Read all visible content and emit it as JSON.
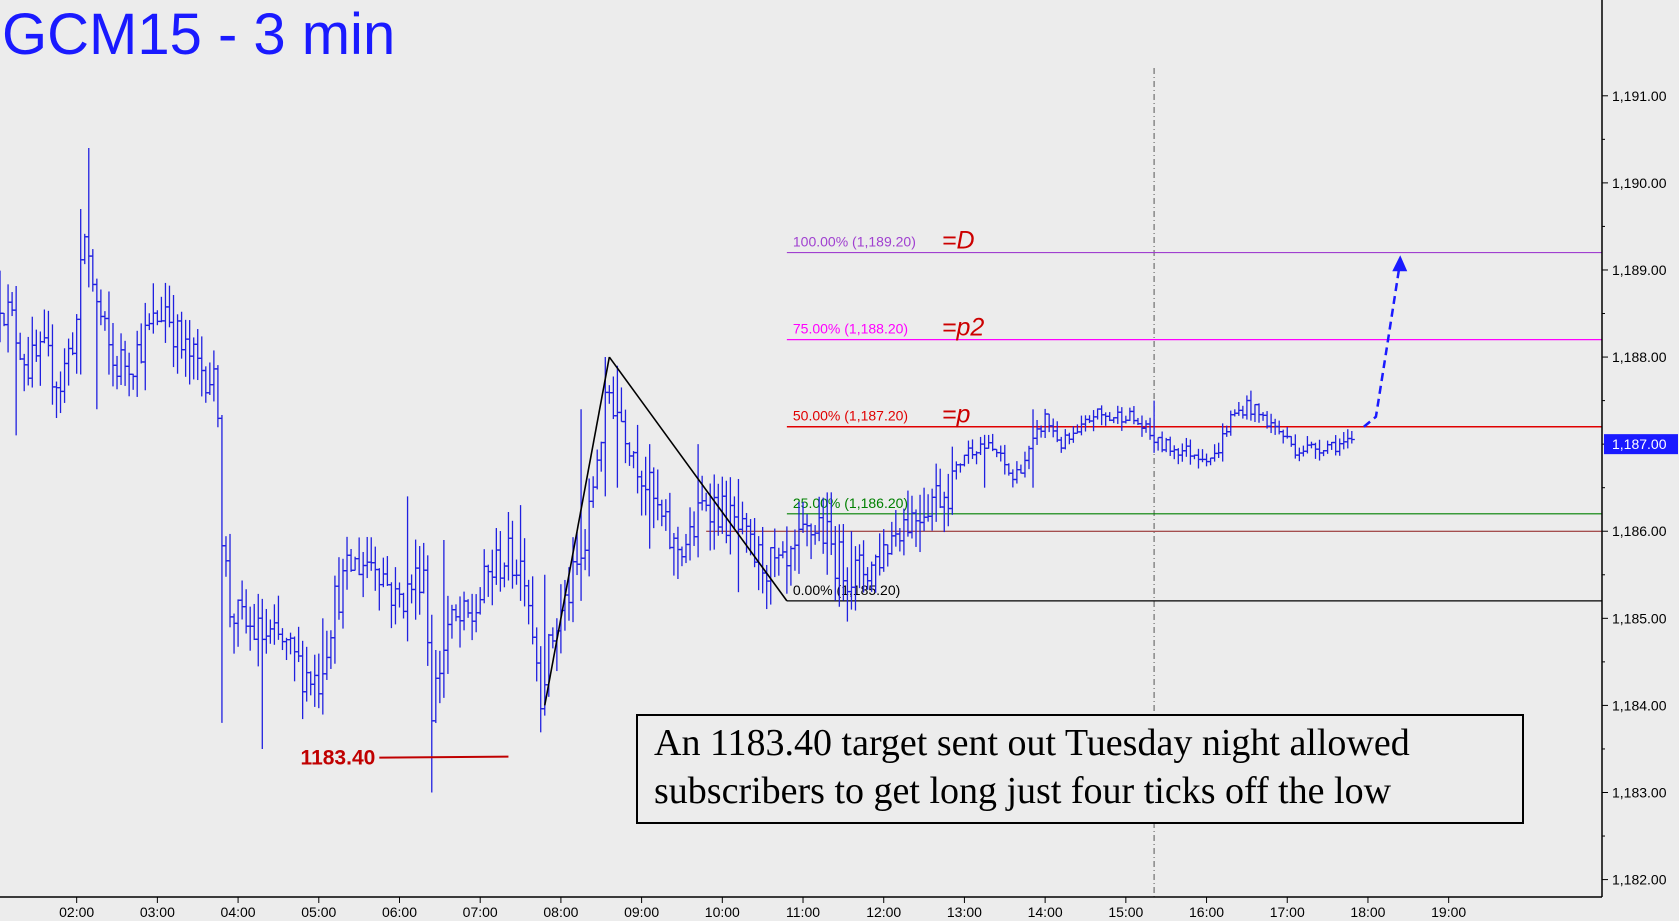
{
  "chart_data": {
    "type": "ohlc-bar",
    "title": "GCM15 - 3 min",
    "y_ticks": [
      1182,
      1183,
      1184,
      1185,
      1186,
      1187,
      1188,
      1189,
      1190,
      1191
    ],
    "y_tick_labels": [
      "1,182.00",
      "1,183.00",
      "1,184.00",
      "1,185.00",
      "1,186.00",
      "1,187.00",
      "1,188.00",
      "1,189.00",
      "1,190.00",
      "1,191.00"
    ],
    "ylim": [
      1181.8,
      1192.1
    ],
    "x_tick_labels": [
      "02:00",
      "03:00",
      "04:00",
      "05:00",
      "06:00",
      "07:00",
      "08:00",
      "09:00",
      "10:00",
      "11:00",
      "12:00",
      "13:00",
      "14:00",
      "15:00",
      "16:00",
      "17:00",
      "18:00",
      "19:00"
    ],
    "x_tick_hours": [
      2,
      3,
      4,
      5,
      6,
      7,
      8,
      9,
      10,
      11,
      12,
      13,
      14,
      15,
      16,
      17,
      18,
      19
    ],
    "xlim_hours": [
      1.05,
      20.9
    ],
    "current_price": 1187.0,
    "current_price_label": "1,187.00",
    "separator_hour": 15.35,
    "colors": {
      "price_bars": "#2020e0",
      "title": "#1a1aff",
      "fib_100": "#a040d0",
      "fib_75": "#ff00ff",
      "fib_50": "#e00000",
      "fib_25": "#008000",
      "fib_0": "#000000",
      "extra_line": "#8b1a1a",
      "target_label": "#c00000",
      "annotation_letters": "#cc0000",
      "projection_arrow": "#1a1aff",
      "background": "#ececec"
    },
    "fib_levels": [
      {
        "pct_label": "100.00% (1,189.20)",
        "value": 1189.2,
        "tag": "=D",
        "color_key": "fib_100"
      },
      {
        "pct_label": "75.00% (1,188.20)",
        "value": 1188.2,
        "tag": "=p2",
        "color_key": "fib_75"
      },
      {
        "pct_label": "50.00% (1,187.20)",
        "value": 1187.2,
        "tag": "=p",
        "color_key": "fib_50"
      },
      {
        "pct_label": "25.00% (1,186.20)",
        "value": 1186.2,
        "tag": "",
        "color_key": "fib_25"
      },
      {
        "pct_label": "0.00% (1,185.20)",
        "value": 1185.2,
        "tag": "",
        "color_key": "fib_0"
      }
    ],
    "fib_start_hour": 10.8,
    "extra_line": {
      "value": 1186.0,
      "start_hour": 9.8
    },
    "target": {
      "label": "1183.40",
      "value": 1183.4,
      "start_hour": 5.75,
      "end_hour": 7.35
    },
    "abc_pattern": [
      {
        "hour": 7.8,
        "price": 1184.0
      },
      {
        "hour": 8.6,
        "price": 1188.0
      },
      {
        "hour": 10.8,
        "price": 1185.2
      }
    ],
    "projection": {
      "start_hour": 17.95,
      "start_price": 1187.2,
      "end_hour": 18.4,
      "end_price": 1189.1
    },
    "price_anchors": [
      [
        1.05,
        1188.7
      ],
      [
        1.2,
        1188.4
      ],
      [
        1.4,
        1187.9
      ],
      [
        1.6,
        1188.0
      ],
      [
        1.8,
        1187.7
      ],
      [
        2.0,
        1188.4
      ],
      [
        2.1,
        1189.4
      ],
      [
        2.25,
        1188.6
      ],
      [
        2.45,
        1187.9
      ],
      [
        2.7,
        1188.0
      ],
      [
        2.9,
        1188.3
      ],
      [
        3.1,
        1188.6
      ],
      [
        3.3,
        1188.1
      ],
      [
        3.5,
        1187.9
      ],
      [
        3.65,
        1187.8
      ],
      [
        3.75,
        1187.5
      ],
      [
        3.8,
        1186.0
      ],
      [
        3.9,
        1185.1
      ],
      [
        4.1,
        1184.9
      ],
      [
        4.3,
        1184.8
      ],
      [
        4.55,
        1184.7
      ],
      [
        4.8,
        1184.4
      ],
      [
        5.0,
        1184.3
      ],
      [
        5.2,
        1185.2
      ],
      [
        5.4,
        1185.6
      ],
      [
        5.7,
        1185.7
      ],
      [
        5.95,
        1185.2
      ],
      [
        6.1,
        1185.3
      ],
      [
        6.3,
        1185.6
      ],
      [
        6.4,
        1184.0
      ],
      [
        6.6,
        1184.9
      ],
      [
        6.9,
        1185.0
      ],
      [
        7.1,
        1185.5
      ],
      [
        7.3,
        1185.7
      ],
      [
        7.55,
        1185.6
      ],
      [
        7.75,
        1184.2
      ],
      [
        7.9,
        1184.8
      ],
      [
        8.1,
        1185.3
      ],
      [
        8.3,
        1185.8
      ],
      [
        8.45,
        1186.9
      ],
      [
        8.6,
        1187.6
      ],
      [
        8.8,
        1187.2
      ],
      [
        9.0,
        1186.7
      ],
      [
        9.2,
        1186.2
      ],
      [
        9.4,
        1185.8
      ],
      [
        9.6,
        1185.9
      ],
      [
        9.8,
        1186.4
      ],
      [
        10.0,
        1186.2
      ],
      [
        10.2,
        1186.0
      ],
      [
        10.4,
        1185.7
      ],
      [
        10.6,
        1185.6
      ],
      [
        10.8,
        1185.5
      ],
      [
        11.0,
        1185.9
      ],
      [
        11.2,
        1186.1
      ],
      [
        11.4,
        1185.7
      ],
      [
        11.6,
        1185.5
      ],
      [
        11.85,
        1185.6
      ],
      [
        12.0,
        1185.8
      ],
      [
        12.2,
        1186.1
      ],
      [
        12.4,
        1186.2
      ],
      [
        12.6,
        1186.4
      ],
      [
        12.8,
        1186.5
      ],
      [
        13.0,
        1186.9
      ],
      [
        13.2,
        1187.0
      ],
      [
        13.4,
        1186.9
      ],
      [
        13.6,
        1186.6
      ],
      [
        13.8,
        1186.9
      ],
      [
        14.0,
        1187.3
      ],
      [
        14.2,
        1187.0
      ],
      [
        14.4,
        1187.1
      ],
      [
        14.6,
        1187.35
      ],
      [
        14.8,
        1187.3
      ],
      [
        15.0,
        1187.35
      ],
      [
        15.2,
        1187.2
      ],
      [
        15.4,
        1187.0
      ],
      [
        15.6,
        1186.95
      ],
      [
        15.85,
        1186.9
      ],
      [
        16.1,
        1186.85
      ],
      [
        16.3,
        1187.3
      ],
      [
        16.5,
        1187.45
      ],
      [
        16.7,
        1187.3
      ],
      [
        16.9,
        1187.15
      ],
      [
        17.1,
        1186.95
      ],
      [
        17.3,
        1186.95
      ],
      [
        17.5,
        1187.0
      ],
      [
        17.8,
        1187.0
      ]
    ],
    "price_spikes": [
      [
        2.15,
        1190.4,
        1188.8
      ],
      [
        2.05,
        1189.7,
        1187.8
      ],
      [
        1.25,
        1188.8,
        1187.1
      ],
      [
        2.25,
        1188.9,
        1187.4
      ],
      [
        3.8,
        1187.2,
        1183.8
      ],
      [
        4.3,
        1185.2,
        1183.5
      ],
      [
        5.05,
        1185.0,
        1183.9
      ],
      [
        6.1,
        1186.4,
        1184.9
      ],
      [
        6.4,
        1184.8,
        1183.0
      ],
      [
        6.55,
        1185.9,
        1184.1
      ],
      [
        7.5,
        1186.3,
        1185.2
      ],
      [
        7.8,
        1185.5,
        1184.0
      ],
      [
        8.25,
        1187.4,
        1185.2
      ],
      [
        8.55,
        1188.0,
        1186.4
      ],
      [
        8.7,
        1187.9,
        1186.5
      ],
      [
        9.1,
        1187.0,
        1185.8
      ],
      [
        9.7,
        1187.0,
        1185.7
      ],
      [
        10.2,
        1186.6,
        1185.3
      ],
      [
        11.3,
        1186.4,
        1185.5
      ],
      [
        11.6,
        1186.0,
        1185.1
      ],
      [
        12.5,
        1186.5,
        1186.0
      ],
      [
        13.25,
        1187.1,
        1186.5
      ],
      [
        13.85,
        1187.4,
        1186.5
      ],
      [
        15.35,
        1187.5,
        1186.9
      ],
      [
        16.2,
        1187.1,
        1186.8
      ]
    ],
    "annotation": [
      "An 1183.40 target sent out Tuesday night allowed",
      "subscribers to get long just four ticks off the low"
    ]
  }
}
